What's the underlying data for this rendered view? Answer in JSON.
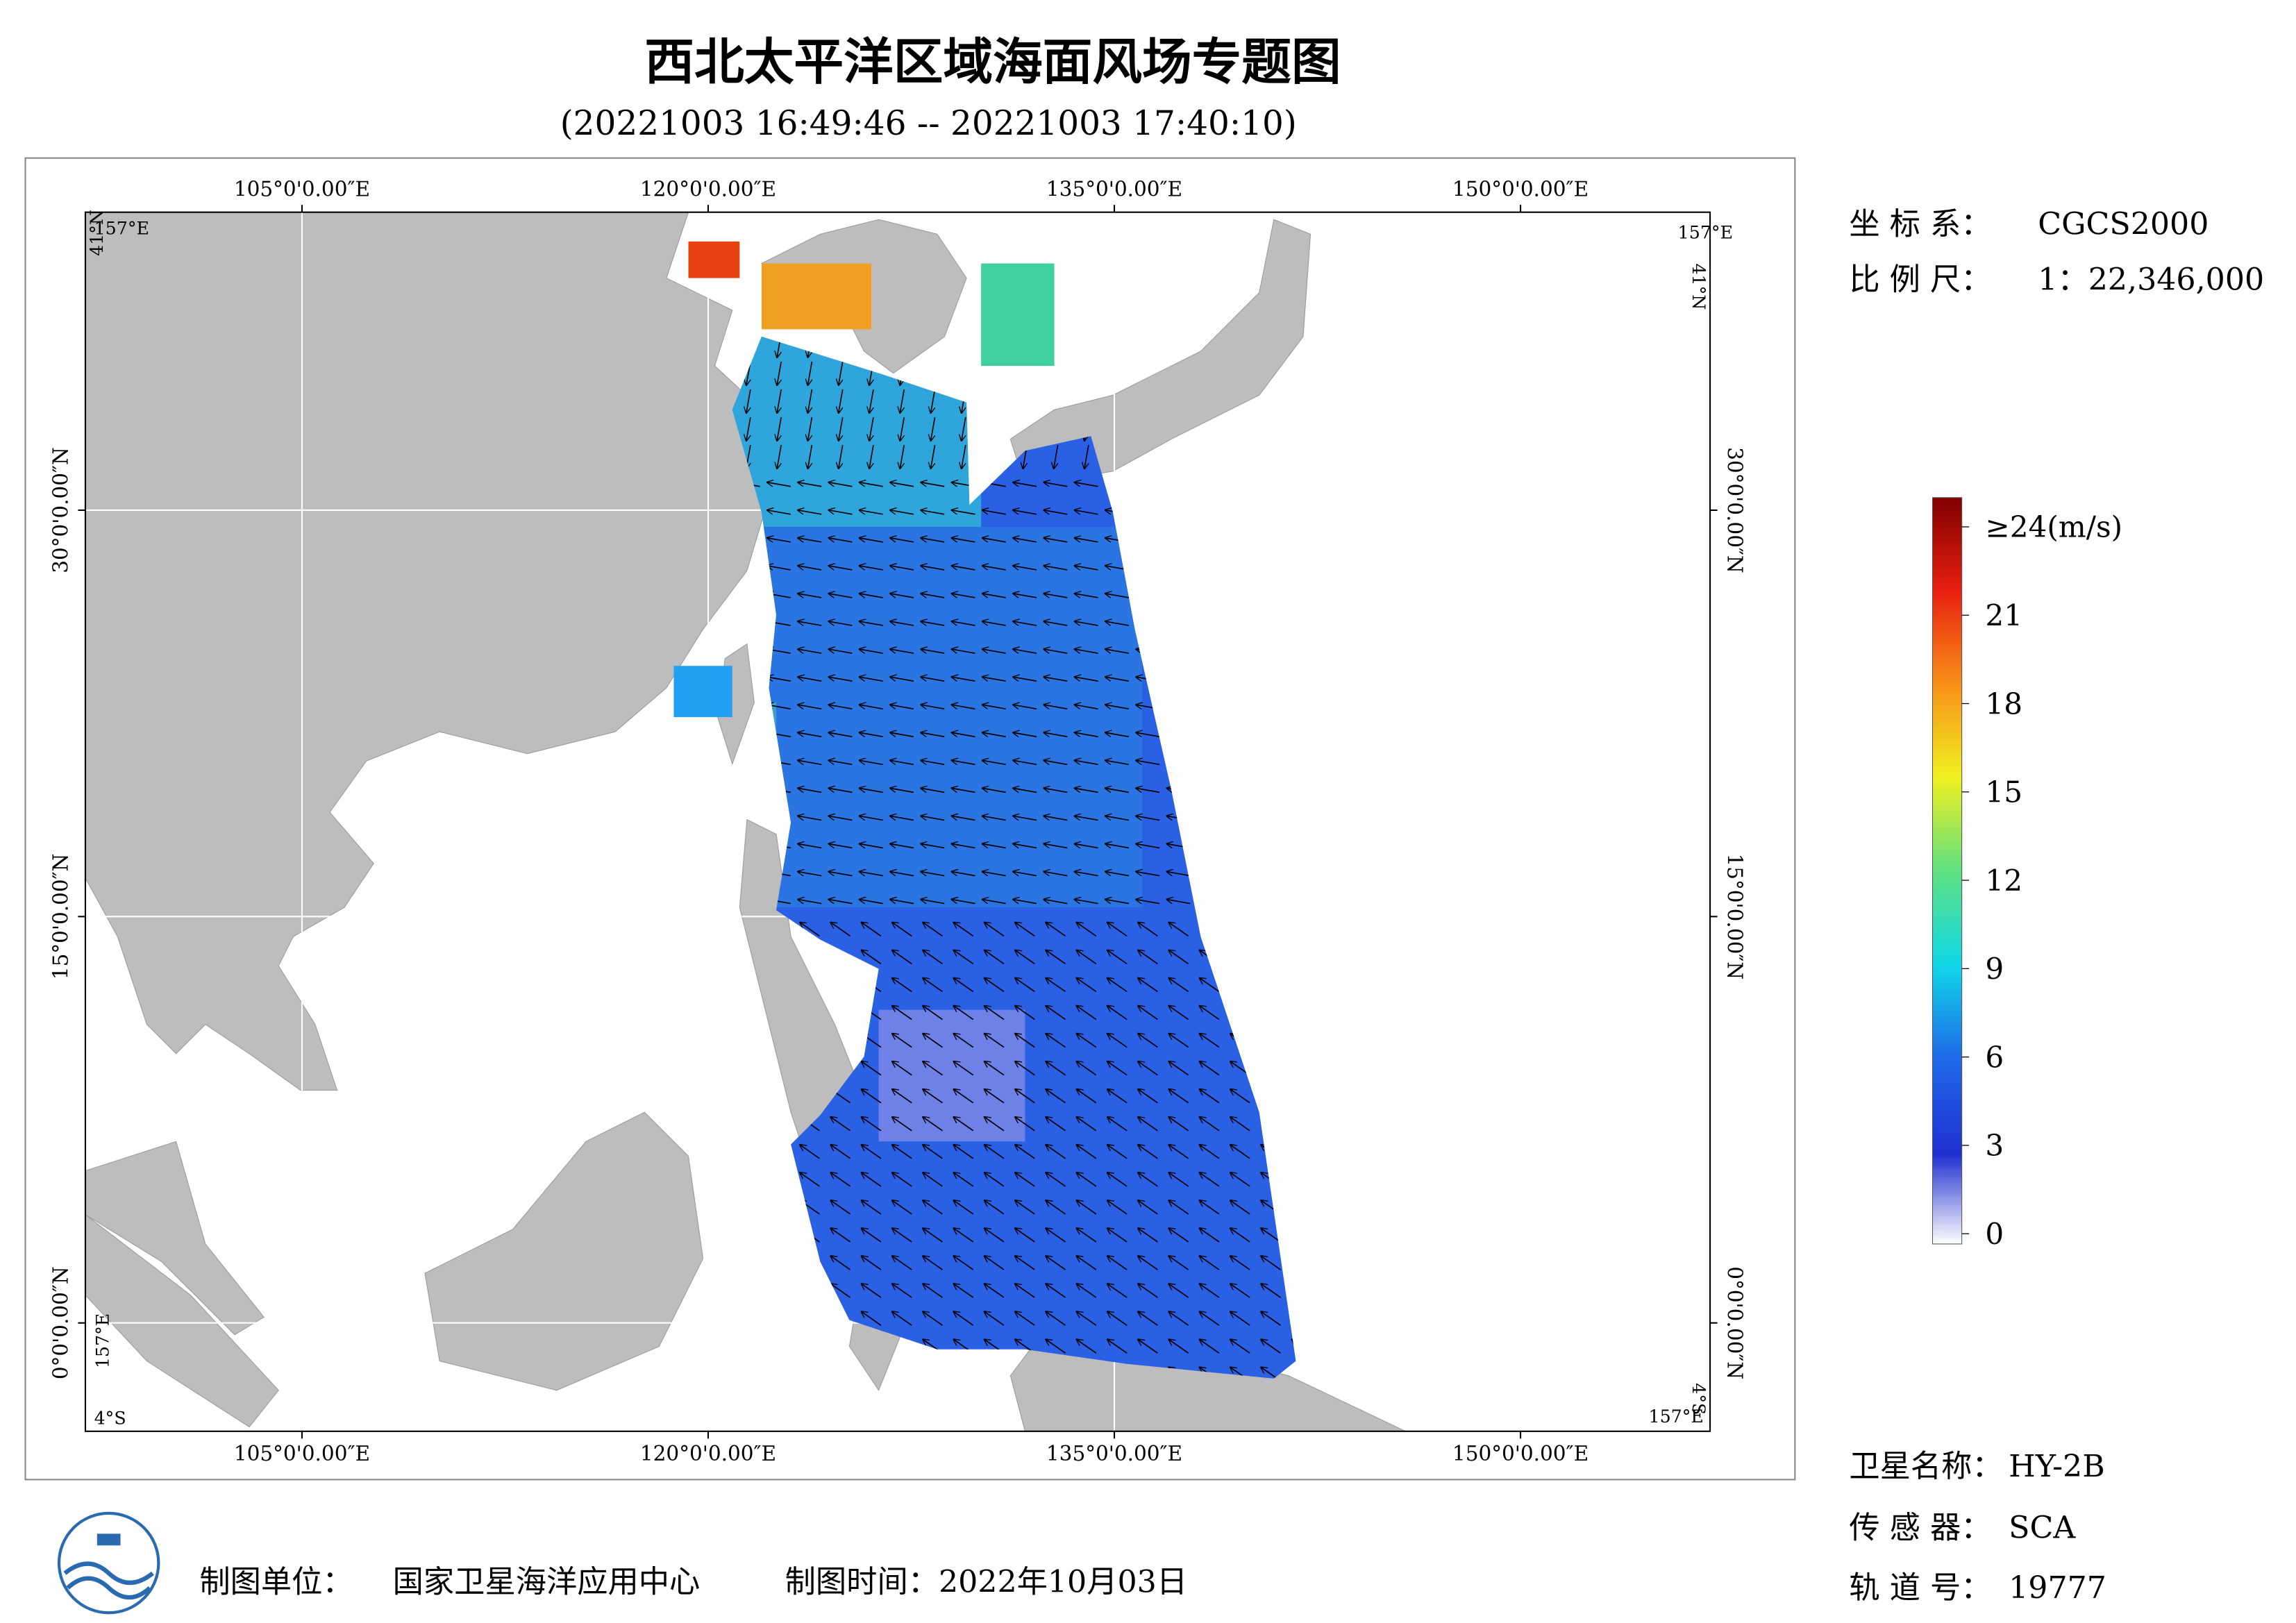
{
  "title": "西北太平洋区域海面风场专题图",
  "subtitle": "(20221003 16:49:46 -- 20221003 17:40:10)",
  "map": {
    "xlim": [
      97,
      157
    ],
    "ylim": [
      -4,
      41
    ],
    "xticks": [
      {
        "value": 105,
        "label": "105°0'0.00″E"
      },
      {
        "value": 120,
        "label": "120°0'0.00″E"
      },
      {
        "value": 135,
        "label": "135°0'0.00″E"
      },
      {
        "value": 150,
        "label": "150°0'0.00″E"
      }
    ],
    "yticks": [
      {
        "value": 0,
        "label": "0°0'0.00″N"
      },
      {
        "value": 15,
        "label": "15°0'0.00″N"
      },
      {
        "value": 30,
        "label": "30°0'0.00″N"
      }
    ],
    "corner_labels": [
      "157°E",
      "41°N",
      "157°E",
      "41°N",
      "157°E",
      "4°S",
      "4°S",
      "157°E"
    ]
  },
  "colorbar": {
    "lim": [
      0,
      24
    ],
    "ticks": [
      0,
      3,
      6,
      9,
      12,
      15,
      18,
      21,
      {
        "value": 24,
        "label": "≥24(m/s)"
      }
    ]
  },
  "info": {
    "crs_label": "坐 标 系：",
    "crs": "CGCS2000",
    "scale_label": "比 例 尺：",
    "scale": "1：22,346,000",
    "satellite_label": "卫星名称：",
    "satellite": "HY-2B",
    "sensor_label": "传 感 器：",
    "sensor": "SCA",
    "orbit_label": "轨 道 号：",
    "orbit": "19777"
  },
  "footer": {
    "unit_label": "制图单位：",
    "unit": "国家卫星海洋应用中心",
    "date": "制图时间：2022年10月03日"
  }
}
